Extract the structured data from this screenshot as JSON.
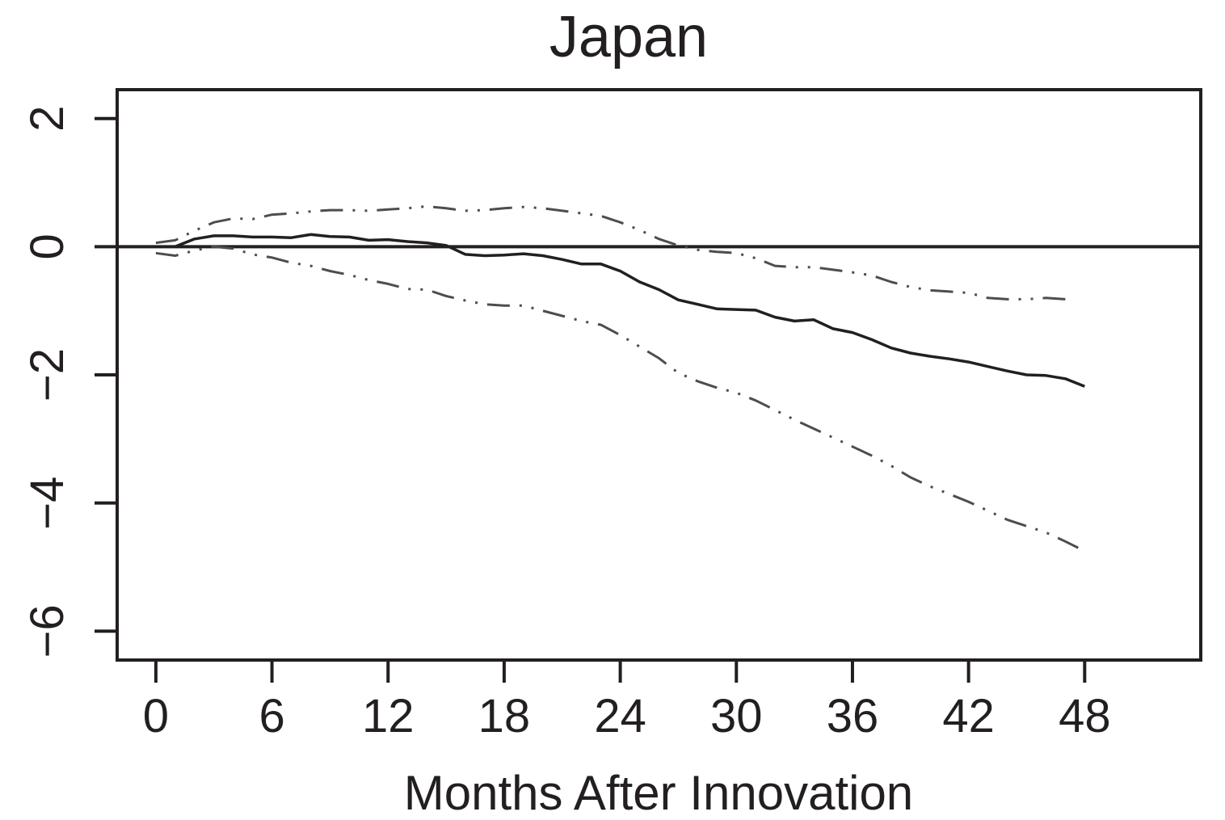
{
  "chart_data": {
    "type": "line",
    "title": "Japan",
    "xlabel": "Months After Innovation",
    "ylabel": "",
    "xlim": [
      -2,
      54
    ],
    "ylim": [
      -6.45,
      2.45
    ],
    "x_ticks": [
      0,
      6,
      12,
      18,
      24,
      30,
      36,
      42,
      48
    ],
    "y_ticks": [
      2,
      0,
      -2,
      -4,
      -6
    ],
    "x_tick_labels": [
      "0",
      "6",
      "12",
      "18",
      "24",
      "30",
      "36",
      "42",
      "48"
    ],
    "y_tick_labels": [
      "2",
      "0",
      "−2",
      "−4",
      "−6"
    ],
    "reference_line": 0,
    "grid": false,
    "series": [
      {
        "style": "solid",
        "color": "#231f20",
        "x": [
          0,
          1,
          2,
          3,
          4,
          5,
          6,
          7,
          8,
          9,
          10,
          11,
          12,
          13,
          14,
          15,
          16,
          17,
          18,
          19,
          20,
          21,
          22,
          23,
          24,
          25,
          26,
          27,
          28,
          29,
          30,
          31,
          32,
          33,
          34,
          35,
          36,
          37,
          38,
          39,
          40,
          41,
          42,
          43,
          44,
          45,
          46,
          47,
          48
        ],
        "y": [
          0.0,
          0.0,
          0.12,
          0.17,
          0.17,
          0.15,
          0.15,
          0.14,
          0.19,
          0.16,
          0.15,
          0.1,
          0.11,
          0.08,
          0.06,
          0.02,
          -0.12,
          -0.14,
          -0.13,
          -0.11,
          -0.14,
          -0.2,
          -0.27,
          -0.27,
          -0.38,
          -0.55,
          -0.67,
          -0.83,
          -0.9,
          -0.97,
          -0.98,
          -0.99,
          -1.1,
          -1.16,
          -1.14,
          -1.28,
          -1.34,
          -1.45,
          -1.58,
          -1.66,
          -1.71,
          -1.75,
          -1.8,
          -1.87,
          -1.94,
          -2.0,
          -2.01,
          -2.06,
          -2.18
        ]
      },
      {
        "style": "dashdot",
        "color": "#4d4d4f",
        "x": [
          0,
          1,
          2,
          3,
          4,
          5,
          6,
          7,
          8,
          9,
          10,
          11,
          12,
          13,
          14,
          15,
          16,
          17,
          18,
          19,
          20,
          21,
          22,
          23,
          24,
          25,
          26,
          27,
          28,
          29,
          30,
          31,
          32,
          33,
          34,
          35,
          36,
          37,
          38,
          39,
          40,
          41,
          42,
          43,
          44,
          45,
          46,
          47
        ],
        "y": [
          0.06,
          0.1,
          0.25,
          0.38,
          0.44,
          0.43,
          0.5,
          0.52,
          0.55,
          0.57,
          0.57,
          0.56,
          0.58,
          0.6,
          0.63,
          0.6,
          0.56,
          0.57,
          0.6,
          0.62,
          0.6,
          0.56,
          0.52,
          0.48,
          0.38,
          0.26,
          0.12,
          0.02,
          -0.05,
          -0.08,
          -0.1,
          -0.18,
          -0.3,
          -0.32,
          -0.32,
          -0.36,
          -0.4,
          -0.45,
          -0.55,
          -0.63,
          -0.68,
          -0.7,
          -0.72,
          -0.8,
          -0.82,
          -0.82,
          -0.8,
          -0.82
        ]
      },
      {
        "style": "dashdot",
        "color": "#4d4d4f",
        "x": [
          0,
          1,
          2,
          3,
          4,
          5,
          6,
          7,
          8,
          9,
          10,
          11,
          12,
          13,
          14,
          15,
          16,
          17,
          18,
          19,
          20,
          21,
          22,
          23,
          24,
          25,
          26,
          27,
          28,
          29,
          30,
          31,
          32,
          33,
          34,
          35,
          36,
          37,
          38,
          39,
          40,
          41,
          42,
          43,
          44,
          45,
          46,
          47,
          48
        ],
        "y": [
          -0.1,
          -0.14,
          -0.06,
          0.0,
          -0.03,
          -0.12,
          -0.17,
          -0.25,
          -0.3,
          -0.38,
          -0.44,
          -0.52,
          -0.58,
          -0.66,
          -0.67,
          -0.77,
          -0.84,
          -0.9,
          -0.92,
          -0.92,
          -1.0,
          -1.08,
          -1.16,
          -1.22,
          -1.38,
          -1.56,
          -1.74,
          -1.97,
          -2.1,
          -2.2,
          -2.28,
          -2.4,
          -2.55,
          -2.7,
          -2.84,
          -2.98,
          -3.12,
          -3.26,
          -3.42,
          -3.6,
          -3.74,
          -3.86,
          -3.98,
          -4.12,
          -4.26,
          -4.36,
          -4.46,
          -4.6,
          -4.75
        ]
      }
    ]
  }
}
